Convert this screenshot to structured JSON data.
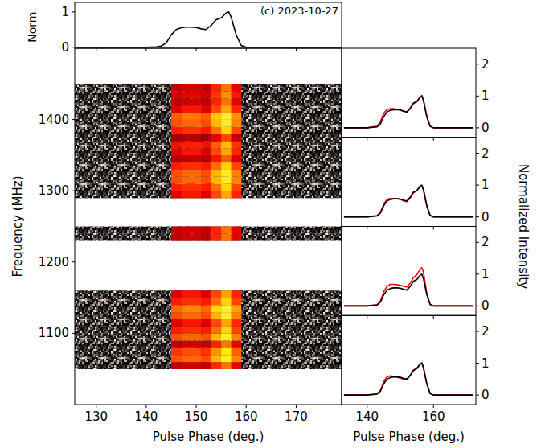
{
  "chart_data": [
    {
      "type": "line",
      "title": "(c) 2023-10-27",
      "y_label": "Norm.",
      "xlim": [
        125.7,
        179.1
      ],
      "ylim": [
        -0.03,
        1.27
      ],
      "xticks": [
        130,
        140,
        150,
        160,
        170
      ],
      "yticks": [
        0,
        1
      ],
      "tick_labels": "y",
      "x": [
        126,
        140,
        142,
        143,
        144,
        145,
        146,
        147,
        148,
        149,
        150,
        151,
        152,
        153,
        154,
        155,
        156,
        156.5,
        157,
        158,
        159,
        160,
        170,
        179
      ],
      "series": [
        {
          "color": "#000000",
          "values": [
            0,
            0,
            0.01,
            0.03,
            0.12,
            0.35,
            0.5,
            0.55,
            0.57,
            0.57,
            0.56,
            0.52,
            0.5,
            0.62,
            0.78,
            0.83,
            0.97,
            1.0,
            0.85,
            0.35,
            0.05,
            0,
            0,
            0
          ]
        }
      ]
    },
    {
      "type": "heatmap",
      "x_label": "Pulse Phase (deg.)",
      "y_label": "Frequency (MHz)",
      "xlim": [
        125.7,
        179.1
      ],
      "ylim": [
        1000,
        1500
      ],
      "xticks": [
        130,
        140,
        150,
        160,
        170
      ],
      "yticks": [
        1100,
        1200,
        1300,
        1400
      ],
      "x_bins": [
        145,
        147,
        149,
        151,
        153,
        155,
        157,
        159
      ],
      "y_bins": [
        1050,
        1060,
        1070,
        1080,
        1090,
        1100,
        1110,
        1120,
        1130,
        1140,
        1150,
        1160,
        1170,
        1180,
        1190,
        1200,
        1210,
        1220,
        1230,
        1240,
        1250,
        1260,
        1270,
        1280,
        1290,
        1300,
        1310,
        1320,
        1330,
        1340,
        1350,
        1360,
        1370,
        1380,
        1390,
        1400,
        1410,
        1420,
        1430,
        1440,
        1450
      ],
      "cells": [
        [
          0.3,
          0.33,
          0.33,
          0.3,
          0.42,
          0.57,
          0.36
        ],
        [
          0.5,
          0.55,
          0.55,
          0.5,
          0.7,
          0.95,
          0.6
        ],
        [
          0.45,
          0.5,
          0.5,
          0.45,
          0.63,
          0.86,
          0.54
        ],
        [
          0.3,
          0.33,
          0.33,
          0.3,
          0.42,
          0.57,
          0.36
        ],
        [
          0.5,
          0.55,
          0.55,
          0.5,
          0.7,
          0.95,
          0.6
        ],
        [
          0.4,
          0.44,
          0.44,
          0.4,
          0.56,
          0.76,
          0.48
        ],
        [
          0.35,
          0.39,
          0.39,
          0.35,
          0.49,
          0.67,
          0.42
        ],
        [
          0.5,
          0.55,
          0.55,
          0.5,
          0.7,
          0.95,
          0.6
        ],
        [
          0.55,
          0.61,
          0.61,
          0.55,
          0.77,
          1.0,
          0.66
        ],
        [
          0.4,
          0.44,
          0.44,
          0.4,
          0.56,
          0.76,
          0.48
        ],
        [
          0.35,
          0.39,
          0.39,
          0.35,
          0.49,
          0.67,
          0.42
        ],
        null,
        null,
        null,
        null,
        null,
        null,
        null,
        [
          0.3,
          0.33,
          0.33,
          0.3,
          0.42,
          0.57,
          0.36
        ],
        [
          0.3,
          0.33,
          0.33,
          0.3,
          0.42,
          0.57,
          0.36
        ],
        null,
        null,
        null,
        null,
        [
          0.35,
          0.39,
          0.39,
          0.35,
          0.49,
          0.67,
          0.42
        ],
        [
          0.4,
          0.44,
          0.44,
          0.4,
          0.56,
          0.76,
          0.48
        ],
        [
          0.5,
          0.55,
          0.55,
          0.5,
          0.7,
          0.95,
          0.6
        ],
        [
          0.5,
          0.55,
          0.55,
          0.5,
          0.7,
          0.95,
          0.6
        ],
        [
          0.4,
          0.44,
          0.44,
          0.4,
          0.56,
          0.76,
          0.48
        ],
        [
          0.28,
          0.3,
          0.3,
          0.28,
          0.39,
          0.52,
          0.33
        ],
        [
          0.35,
          0.39,
          0.39,
          0.35,
          0.49,
          0.67,
          0.42
        ],
        [
          0.38,
          0.41,
          0.41,
          0.38,
          0.53,
          0.71,
          0.45
        ],
        [
          0.25,
          0.28,
          0.28,
          0.25,
          0.35,
          0.48,
          0.3
        ],
        [
          0.4,
          0.44,
          0.44,
          0.4,
          0.56,
          0.76,
          0.48
        ],
        [
          0.5,
          0.55,
          0.55,
          0.5,
          0.7,
          0.95,
          0.6
        ],
        [
          0.53,
          0.58,
          0.58,
          0.53,
          0.74,
          1.0,
          0.63
        ],
        [
          0.35,
          0.39,
          0.39,
          0.35,
          0.49,
          0.67,
          0.42
        ],
        [
          0.3,
          0.33,
          0.33,
          0.3,
          0.42,
          0.57,
          0.36
        ],
        [
          0.33,
          0.36,
          0.36,
          0.33,
          0.46,
          0.62,
          0.39
        ],
        [
          0.3,
          0.33,
          0.33,
          0.3,
          0.42,
          0.57,
          0.36
        ]
      ]
    },
    {
      "type": "line",
      "xlim": [
        132.3,
        172.8
      ],
      "ylim": [
        -0.3,
        2.5
      ],
      "xticks": [
        140,
        160
      ],
      "yticks": [
        0,
        1,
        2
      ],
      "tick_labels": "y",
      "x": [
        133,
        140,
        143,
        144,
        145,
        146,
        147,
        148,
        149,
        150,
        151,
        152,
        153,
        154,
        155,
        156,
        156.5,
        157,
        158,
        159,
        160,
        172
      ],
      "series": [
        {
          "color": "#000000",
          "values": [
            0,
            0,
            0.03,
            0.12,
            0.35,
            0.5,
            0.55,
            0.57,
            0.57,
            0.56,
            0.52,
            0.5,
            0.62,
            0.78,
            0.83,
            0.97,
            1.0,
            0.85,
            0.35,
            0.05,
            0,
            0
          ]
        },
        {
          "color": "#ff0000",
          "values": [
            0,
            0,
            0.05,
            0.2,
            0.45,
            0.58,
            0.6,
            0.6,
            0.58,
            0.56,
            0.52,
            0.5,
            0.6,
            0.76,
            0.82,
            0.95,
            1.02,
            0.88,
            0.35,
            0.05,
            0,
            0
          ]
        }
      ]
    },
    {
      "type": "line",
      "xlim": [
        132.3,
        172.8
      ],
      "ylim": [
        -0.3,
        2.5
      ],
      "xticks": [
        140,
        160
      ],
      "yticks": [
        0,
        1,
        2
      ],
      "tick_labels": "y",
      "x": [
        133,
        140,
        143,
        144,
        145,
        146,
        147,
        148,
        149,
        150,
        151,
        152,
        153,
        154,
        155,
        156,
        156.5,
        157,
        158,
        159,
        160,
        172
      ],
      "series": [
        {
          "color": "#000000",
          "values": [
            0,
            0,
            0.03,
            0.12,
            0.35,
            0.5,
            0.55,
            0.57,
            0.57,
            0.56,
            0.52,
            0.5,
            0.62,
            0.78,
            0.83,
            0.97,
            1.0,
            0.85,
            0.35,
            0.05,
            0,
            0
          ]
        },
        {
          "color": "#ff0000",
          "values": [
            0,
            0,
            0.04,
            0.15,
            0.4,
            0.55,
            0.58,
            0.58,
            0.57,
            0.55,
            0.5,
            0.48,
            0.6,
            0.76,
            0.82,
            0.95,
            0.98,
            0.84,
            0.33,
            0.04,
            0,
            0
          ]
        }
      ]
    },
    {
      "type": "line",
      "xlim": [
        132.3,
        172.8
      ],
      "ylim": [
        -0.3,
        2.5
      ],
      "xticks": [
        140,
        160
      ],
      "yticks": [
        0,
        1,
        2
      ],
      "tick_labels": "y",
      "x": [
        133,
        140,
        143,
        144,
        145,
        146,
        147,
        148,
        149,
        150,
        151,
        152,
        153,
        154,
        155,
        156,
        156.5,
        157,
        158,
        159,
        160,
        172
      ],
      "series": [
        {
          "color": "#000000",
          "values": [
            0,
            0,
            0.03,
            0.12,
            0.35,
            0.5,
            0.55,
            0.57,
            0.57,
            0.56,
            0.52,
            0.5,
            0.62,
            0.78,
            0.83,
            0.97,
            1.0,
            0.85,
            0.35,
            0.05,
            0,
            0
          ]
        },
        {
          "color": "#ff0000",
          "values": [
            0,
            0,
            0.04,
            0.15,
            0.45,
            0.62,
            0.68,
            0.68,
            0.67,
            0.65,
            0.62,
            0.6,
            0.72,
            0.9,
            0.98,
            1.15,
            1.2,
            1.05,
            0.4,
            0.05,
            0,
            0
          ]
        }
      ]
    },
    {
      "type": "line",
      "x_label": "Pulse Phase (deg.)",
      "xlim": [
        132.3,
        172.8
      ],
      "ylim": [
        -0.3,
        2.5
      ],
      "xticks": [
        140,
        160
      ],
      "yticks": [
        0,
        1,
        2
      ],
      "tick_labels": true,
      "x": [
        133,
        140,
        143,
        144,
        145,
        146,
        147,
        148,
        149,
        150,
        151,
        152,
        153,
        154,
        155,
        156,
        156.5,
        157,
        158,
        159,
        160,
        172
      ],
      "series": [
        {
          "color": "#000000",
          "values": [
            0,
            0,
            0.03,
            0.12,
            0.35,
            0.5,
            0.55,
            0.57,
            0.57,
            0.56,
            0.52,
            0.5,
            0.62,
            0.78,
            0.83,
            0.97,
            1.0,
            0.85,
            0.35,
            0.05,
            0,
            0
          ]
        },
        {
          "color": "#ff0000",
          "values": [
            0,
            0,
            0.04,
            0.15,
            0.42,
            0.58,
            0.6,
            0.58,
            0.56,
            0.53,
            0.5,
            0.5,
            0.62,
            0.78,
            0.85,
            0.98,
            1.02,
            0.86,
            0.35,
            0.05,
            0,
            0
          ]
        }
      ]
    }
  ],
  "shared_y_label": "Normalized Intensity"
}
